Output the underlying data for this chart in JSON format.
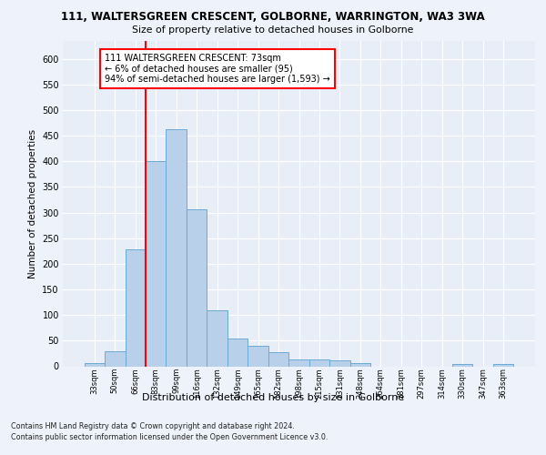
{
  "title_line1": "111, WALTERSGREEN CRESCENT, GOLBORNE, WARRINGTON, WA3 3WA",
  "title_line2": "Size of property relative to detached houses in Golborne",
  "xlabel": "Distribution of detached houses by size in Golborne",
  "ylabel": "Number of detached properties",
  "bar_labels": [
    "33sqm",
    "50sqm",
    "66sqm",
    "83sqm",
    "99sqm",
    "116sqm",
    "132sqm",
    "149sqm",
    "165sqm",
    "182sqm",
    "198sqm",
    "215sqm",
    "231sqm",
    "248sqm",
    "264sqm",
    "281sqm",
    "297sqm",
    "314sqm",
    "330sqm",
    "347sqm",
    "363sqm"
  ],
  "bar_values": [
    7,
    30,
    229,
    401,
    463,
    306,
    110,
    54,
    40,
    27,
    14,
    13,
    11,
    7,
    0,
    0,
    0,
    0,
    5,
    0,
    5
  ],
  "bar_color": "#b8d0ea",
  "bar_edge_color": "#6aaad4",
  "vline_color": "red",
  "annotation_text": "111 WALTERSGREEN CRESCENT: 73sqm\n← 6% of detached houses are smaller (95)\n94% of semi-detached houses are larger (1,593) →",
  "annotation_box_color": "white",
  "annotation_box_edge_color": "red",
  "ylim": [
    0,
    635
  ],
  "yticks": [
    0,
    50,
    100,
    150,
    200,
    250,
    300,
    350,
    400,
    450,
    500,
    550,
    600
  ],
  "footer_line1": "Contains HM Land Registry data © Crown copyright and database right 2024.",
  "footer_line2": "Contains public sector information licensed under the Open Government Licence v3.0.",
  "bg_color": "#eef2fa",
  "plot_bg_color": "#e8eef8",
  "grid_color": "white"
}
